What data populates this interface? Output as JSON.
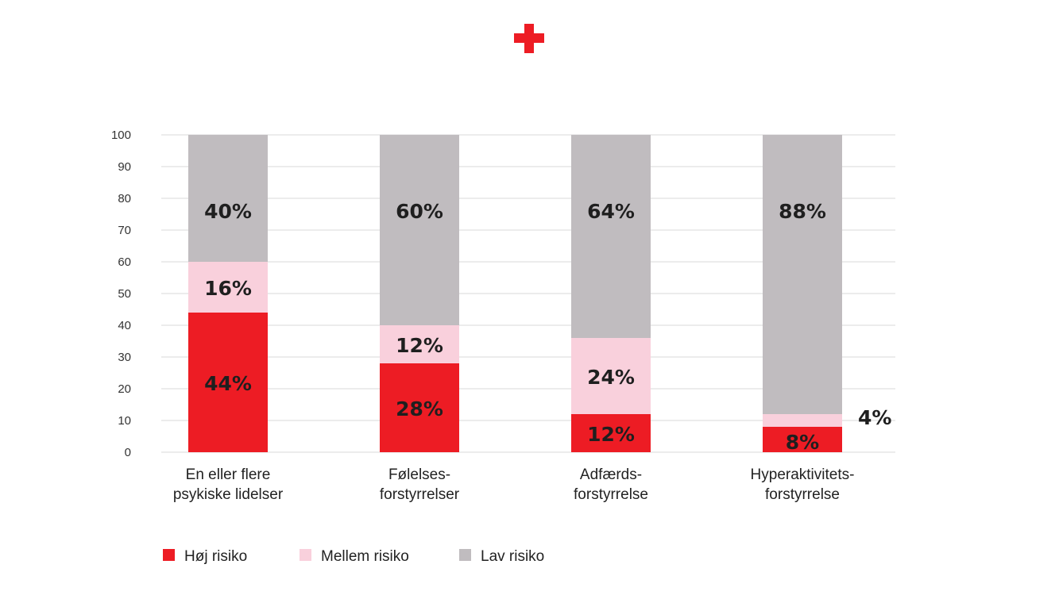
{
  "colors": {
    "high": "#ed1c24",
    "medium": "#f9d0dc",
    "low": "#c0bcbf",
    "grid": "#d9d9d9",
    "logo": "#ed1c24"
  },
  "logo": {
    "icon": "red-cross-icon"
  },
  "chart_data": {
    "type": "bar",
    "stacked": true,
    "title": "",
    "xlabel": "",
    "ylabel": "",
    "ylim": [
      0,
      100
    ],
    "yticks": [
      "0",
      "10",
      "20",
      "30",
      "40",
      "50",
      "60",
      "70",
      "80",
      "90",
      "100"
    ],
    "grid": true,
    "legend_position": "bottom-left",
    "categories": [
      [
        "En eller flere",
        "psykiske lidelser"
      ],
      [
        "Følelses-",
        "forstyrrelser"
      ],
      [
        "Adfærds-",
        "forstyrrelse"
      ],
      [
        "Hyperaktivitets-",
        "forstyrrelse"
      ]
    ],
    "series": [
      {
        "name": "Høj risiko",
        "color": "#ed1c24",
        "values": [
          44,
          28,
          12,
          8
        ],
        "labels": [
          "44%",
          "28%",
          "12%",
          "8%"
        ]
      },
      {
        "name": "Mellem risiko",
        "color": "#f9d0dc",
        "values": [
          16,
          12,
          24,
          4
        ],
        "labels": [
          "16%",
          "12%",
          "24%",
          "4%"
        ]
      },
      {
        "name": "Lav risiko",
        "color": "#c0bcbf",
        "values": [
          40,
          60,
          64,
          88
        ],
        "labels": [
          "40%",
          "60%",
          "64%",
          "88%"
        ]
      }
    ]
  }
}
